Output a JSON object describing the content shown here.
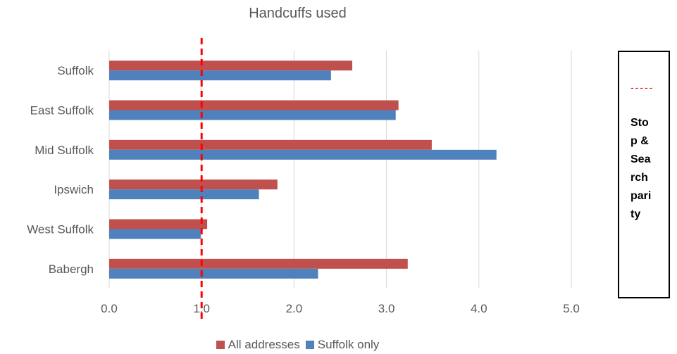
{
  "chart_data": {
    "type": "bar",
    "orientation": "horizontal",
    "title": "Handcuffs used",
    "categories": [
      "Suffolk",
      "East Suffolk",
      "Mid Suffolk",
      "Ipswich",
      "West Suffolk",
      "Babergh"
    ],
    "series": [
      {
        "name": "All addresses",
        "color": "#C0504D",
        "values": [
          2.63,
          3.13,
          3.49,
          1.82,
          1.06,
          3.23
        ]
      },
      {
        "name": "Suffolk only",
        "color": "#4F81BD",
        "values": [
          2.4,
          3.1,
          4.19,
          1.62,
          0.99,
          2.26
        ]
      }
    ],
    "xlim": [
      0,
      5
    ],
    "x_ticks": [
      "0.0",
      "1.0",
      "2.0",
      "3.0",
      "4.0",
      "5.0"
    ],
    "grid": true,
    "legend_position": "bottom",
    "reference_line": {
      "value": 1.0,
      "color": "#FF0000",
      "style": "dashed"
    }
  },
  "annotation": {
    "dash_text": "-----",
    "label": "Stop & Search parity"
  }
}
